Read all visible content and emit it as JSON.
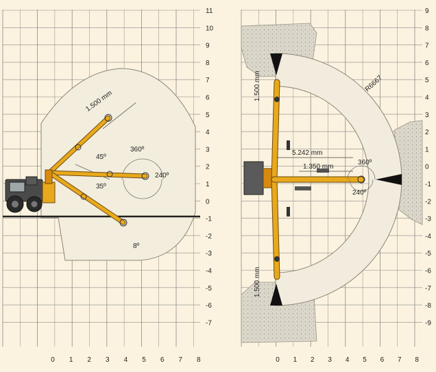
{
  "left_panel": {
    "y_ticks": [
      "11",
      "10",
      "9",
      "8",
      "7",
      "6",
      "5",
      "4",
      "3",
      "2",
      "1",
      "0",
      "-1",
      "-2",
      "-3",
      "-4",
      "-5",
      "-6",
      "-7"
    ],
    "x_ticks": [
      "0",
      "1",
      "2",
      "3",
      "4",
      "5",
      "6",
      "7",
      "8"
    ],
    "annotations": {
      "reach": "1.500 mm",
      "angle_up": "45º",
      "angle_down": "35º",
      "rot_360": "360º",
      "rot_240": "240º",
      "angle_tip": "8º"
    }
  },
  "right_panel": {
    "y_ticks": [
      "9",
      "8",
      "7",
      "6",
      "5",
      "4",
      "3",
      "2",
      "1",
      "0",
      "-1",
      "-2",
      "-3",
      "-4",
      "-5",
      "-6",
      "-7",
      "-8",
      "-9"
    ],
    "x_ticks": [
      "0",
      "1",
      "2",
      "3",
      "4",
      "5",
      "6",
      "7",
      "8"
    ],
    "annotations": {
      "top_clear": "1.500 mm",
      "bottom_clear": "1.500 mm",
      "radius": "R6667",
      "dim_long": "5.242 mm",
      "dim_short": "1.350 mm",
      "rot_360": "360º",
      "rot_240": "240º"
    }
  },
  "colors": {
    "background": "#fbf3df",
    "grid": "#8a8a8a",
    "boom": "#e9a91c",
    "envelope_fill": "#f1ebdc",
    "rock": "#d7d2c6"
  }
}
